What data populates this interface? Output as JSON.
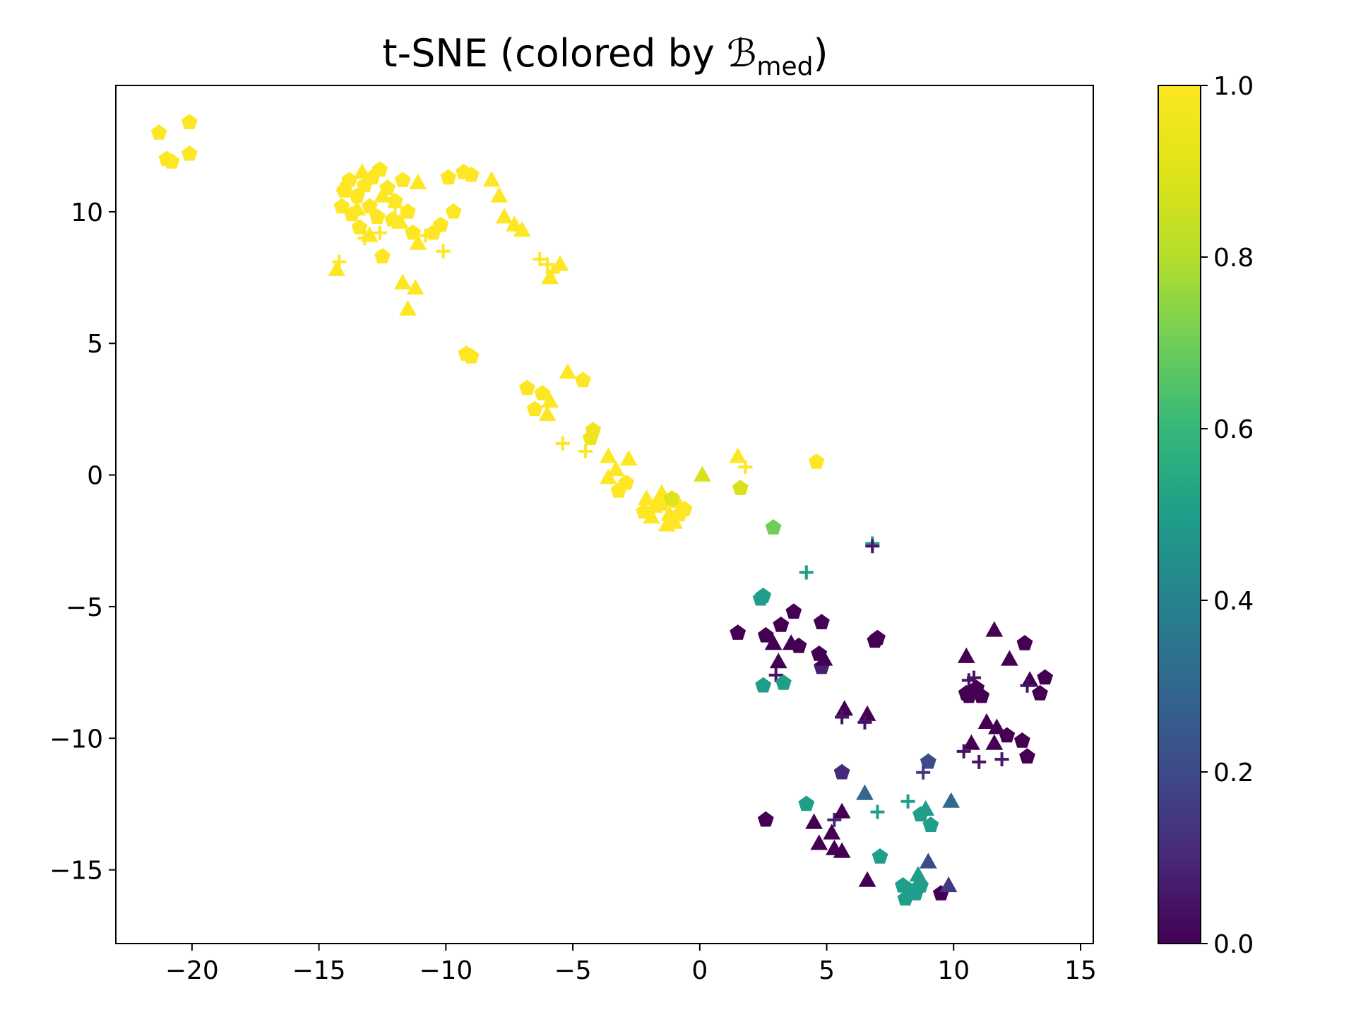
{
  "chart_data": {
    "type": "scatter",
    "title": "t-SNE (colored by ",
    "title_symbol": "ℬ",
    "title_subscript": "med",
    "title_end": ")",
    "xlabel": "",
    "ylabel": "",
    "xlim": [
      -23,
      15.5
    ],
    "ylim": [
      -17.8,
      14.8
    ],
    "xticks": [
      -20,
      -15,
      -10,
      -5,
      0,
      5,
      10,
      15
    ],
    "xtick_labels": [
      "−20",
      "−15",
      "−10",
      "−5",
      "0",
      "5",
      "10",
      "15"
    ],
    "yticks": [
      -15,
      -10,
      -5,
      0,
      5,
      10
    ],
    "ytick_labels": [
      "−15",
      "−10",
      "−5",
      "0",
      "5",
      "10"
    ],
    "grid": false,
    "colorbar": {
      "colormap": "viridis",
      "range": [
        0.0,
        1.0
      ],
      "ticks": [
        0.0,
        0.2,
        0.4,
        0.6,
        0.8,
        1.0
      ],
      "tick_labels": [
        "0.0",
        "0.2",
        "0.4",
        "0.6",
        "0.8",
        "1.0"
      ]
    },
    "marker_types": [
      "pentagon",
      "triangle",
      "plus"
    ],
    "points": [
      [
        -21.3,
        13.0,
        "p",
        1.0
      ],
      [
        -21.0,
        12.0,
        "p",
        1.0
      ],
      [
        -20.8,
        11.9,
        "p",
        1.0
      ],
      [
        -20.1,
        13.4,
        "p",
        1.0
      ],
      [
        -20.1,
        12.2,
        "p",
        1.0
      ],
      [
        -14.0,
        10.8,
        "p",
        1.0
      ],
      [
        -13.8,
        11.2,
        "p",
        1.0
      ],
      [
        -13.5,
        10.6,
        "p",
        1.0
      ],
      [
        -13.2,
        11.0,
        "p",
        1.0
      ],
      [
        -12.9,
        11.3,
        "p",
        1.0
      ],
      [
        -12.6,
        11.6,
        "p",
        1.0
      ],
      [
        -12.3,
        10.9,
        "p",
        1.0
      ],
      [
        -12.0,
        10.4,
        "p",
        1.0
      ],
      [
        -11.7,
        11.2,
        "p",
        1.0
      ],
      [
        -11.5,
        10.0,
        "p",
        1.0
      ],
      [
        -12.1,
        9.7,
        "p",
        1.0
      ],
      [
        -12.7,
        9.8,
        "p",
        1.0
      ],
      [
        -13.0,
        10.2,
        "p",
        1.0
      ],
      [
        -13.7,
        9.9,
        "p",
        1.0
      ],
      [
        -14.1,
        10.2,
        "p",
        1.0
      ],
      [
        -13.4,
        9.4,
        "p",
        1.0
      ],
      [
        -12.5,
        8.3,
        "p",
        1.0
      ],
      [
        -11.3,
        9.2,
        "p",
        1.0
      ],
      [
        -10.5,
        9.2,
        "p",
        1.0
      ],
      [
        -10.2,
        9.5,
        "p",
        1.0
      ],
      [
        -9.9,
        11.3,
        "p",
        1.0
      ],
      [
        -9.3,
        11.5,
        "p",
        1.0
      ],
      [
        -9.0,
        11.4,
        "p",
        1.0
      ],
      [
        -9.7,
        10.0,
        "p",
        1.0
      ],
      [
        -14.0,
        11.0,
        "t",
        1.0
      ],
      [
        -13.3,
        11.5,
        "t",
        1.0
      ],
      [
        -13.5,
        10.1,
        "t",
        1.0
      ],
      [
        -12.5,
        10.6,
        "t",
        1.0
      ],
      [
        -11.8,
        9.6,
        "t",
        1.0
      ],
      [
        -11.1,
        11.1,
        "t",
        1.0
      ],
      [
        -13.0,
        9.1,
        "t",
        1.0
      ],
      [
        -11.1,
        8.8,
        "t",
        1.0
      ],
      [
        -8.2,
        11.2,
        "t",
        1.0
      ],
      [
        -7.9,
        10.6,
        "t",
        1.0
      ],
      [
        -7.7,
        9.8,
        "t",
        1.0
      ],
      [
        -7.3,
        9.5,
        "t",
        1.0
      ],
      [
        -7.0,
        9.3,
        "t",
        1.0
      ],
      [
        -14.3,
        7.8,
        "t",
        1.0
      ],
      [
        -11.7,
        7.3,
        "t",
        1.0
      ],
      [
        -11.2,
        7.1,
        "t",
        1.0
      ],
      [
        -11.5,
        6.3,
        "t",
        1.0
      ],
      [
        -13.2,
        9.0,
        "+",
        1.0
      ],
      [
        -12.6,
        9.2,
        "+",
        1.0
      ],
      [
        -12.0,
        10.2,
        "+",
        1.0
      ],
      [
        -10.8,
        9.1,
        "+",
        1.0
      ],
      [
        -10.1,
        8.5,
        "+",
        1.0
      ],
      [
        -14.2,
        8.1,
        "+",
        1.0
      ],
      [
        -6.3,
        8.2,
        "+",
        1.0
      ],
      [
        -6.0,
        8.0,
        "+",
        1.0
      ],
      [
        -5.8,
        7.7,
        "+",
        1.0
      ],
      [
        -5.9,
        7.5,
        "t",
        1.0
      ],
      [
        -5.5,
        8.0,
        "t",
        1.0
      ],
      [
        -9.2,
        4.6,
        "p",
        1.0
      ],
      [
        -9.0,
        4.5,
        "p",
        1.0
      ],
      [
        -6.8,
        3.3,
        "p",
        1.0
      ],
      [
        -6.2,
        3.1,
        "p",
        1.0
      ],
      [
        -4.6,
        3.6,
        "p",
        1.0
      ],
      [
        -6.5,
        2.5,
        "p",
        1.0
      ],
      [
        -5.9,
        2.8,
        "t",
        1.0
      ],
      [
        -5.2,
        3.9,
        "t",
        1.0
      ],
      [
        -6.0,
        2.3,
        "t",
        1.0
      ],
      [
        -4.2,
        1.7,
        "p",
        0.95
      ],
      [
        -4.3,
        1.4,
        "p",
        0.95
      ],
      [
        -5.4,
        1.2,
        "+",
        1.0
      ],
      [
        -4.5,
        0.9,
        "+",
        1.0
      ],
      [
        -3.6,
        0.7,
        "t",
        1.0
      ],
      [
        -3.3,
        0.2,
        "t",
        1.0
      ],
      [
        -2.8,
        0.6,
        "t",
        1.0
      ],
      [
        -3.6,
        -0.1,
        "t",
        1.0
      ],
      [
        -2.9,
        -0.3,
        "p",
        1.0
      ],
      [
        -3.2,
        -0.6,
        "p",
        1.0
      ],
      [
        -2.1,
        -0.9,
        "t",
        1.0
      ],
      [
        -1.8,
        -1.2,
        "t",
        1.0
      ],
      [
        -1.5,
        -0.7,
        "t",
        1.0
      ],
      [
        -1.2,
        -1.5,
        "t",
        1.0
      ],
      [
        -0.9,
        -1.0,
        "t",
        1.0
      ],
      [
        -1.9,
        -1.6,
        "t",
        1.0
      ],
      [
        -1.3,
        -1.9,
        "t",
        1.0
      ],
      [
        -1.0,
        -1.8,
        "t",
        1.0
      ],
      [
        -0.6,
        -1.3,
        "p",
        1.0
      ],
      [
        -1.5,
        -1.1,
        "p",
        1.0
      ],
      [
        -1.1,
        -0.9,
        "p",
        0.9
      ],
      [
        -0.8,
        -1.5,
        "p",
        1.0
      ],
      [
        -2.2,
        -1.4,
        "p",
        1.0
      ],
      [
        0.1,
        0.0,
        "t",
        0.88
      ],
      [
        1.5,
        0.7,
        "t",
        1.0
      ],
      [
        1.8,
        0.3,
        "+",
        1.0
      ],
      [
        1.6,
        -0.5,
        "p",
        0.88
      ],
      [
        4.6,
        0.5,
        "p",
        1.0
      ],
      [
        2.9,
        -2.0,
        "p",
        0.7
      ],
      [
        6.8,
        -2.6,
        "+",
        0.5
      ],
      [
        6.8,
        -2.7,
        "+",
        0.05
      ],
      [
        4.2,
        -3.7,
        "+",
        0.5
      ],
      [
        2.5,
        -4.6,
        "p",
        0.5
      ],
      [
        2.4,
        -4.7,
        "p",
        0.5
      ],
      [
        1.5,
        -6.0,
        "p",
        0.0
      ],
      [
        2.6,
        -6.1,
        "p",
        0.0
      ],
      [
        3.2,
        -5.7,
        "p",
        0.0
      ],
      [
        3.7,
        -5.2,
        "p",
        0.0
      ],
      [
        4.8,
        -5.6,
        "p",
        0.0
      ],
      [
        3.9,
        -6.5,
        "p",
        0.0
      ],
      [
        4.7,
        -6.8,
        "p",
        0.0
      ],
      [
        4.8,
        -7.3,
        "p",
        0.08
      ],
      [
        7.0,
        -6.2,
        "p",
        0.0
      ],
      [
        6.9,
        -6.3,
        "p",
        0.0
      ],
      [
        2.9,
        -6.4,
        "t",
        0.0
      ],
      [
        3.1,
        -7.1,
        "t",
        0.0
      ],
      [
        3.6,
        -6.4,
        "t",
        0.0
      ],
      [
        4.9,
        -7.0,
        "t",
        0.0
      ],
      [
        3.0,
        -7.6,
        "+",
        0.05
      ],
      [
        2.5,
        -8.0,
        "p",
        0.5
      ],
      [
        3.3,
        -7.9,
        "p",
        0.5
      ],
      [
        5.7,
        -8.9,
        "t",
        0.0
      ],
      [
        6.6,
        -9.1,
        "t",
        0.0
      ],
      [
        5.6,
        -9.2,
        "+",
        0.05
      ],
      [
        6.5,
        -9.4,
        "+",
        0.05
      ],
      [
        10.5,
        -6.9,
        "t",
        0.0
      ],
      [
        11.6,
        -5.9,
        "t",
        0.0
      ],
      [
        12.2,
        -7.0,
        "t",
        0.0
      ],
      [
        12.8,
        -6.4,
        "p",
        0.0
      ],
      [
        13.0,
        -7.8,
        "t",
        0.0
      ],
      [
        13.6,
        -7.7,
        "p",
        0.0
      ],
      [
        13.4,
        -8.3,
        "p",
        0.0
      ],
      [
        12.9,
        -8.0,
        "+",
        0.05
      ],
      [
        10.6,
        -7.8,
        "+",
        0.05
      ],
      [
        10.8,
        -7.7,
        "+",
        0.05
      ],
      [
        10.5,
        -8.3,
        "p",
        0.0
      ],
      [
        10.9,
        -8.1,
        "p",
        0.0
      ],
      [
        11.1,
        -8.4,
        "p",
        0.0
      ],
      [
        10.6,
        -8.4,
        "p",
        0.0
      ],
      [
        11.3,
        -9.4,
        "t",
        0.0
      ],
      [
        11.7,
        -9.6,
        "t",
        0.0
      ],
      [
        12.1,
        -9.9,
        "p",
        0.0
      ],
      [
        12.7,
        -10.1,
        "p",
        0.0
      ],
      [
        12.9,
        -10.7,
        "p",
        0.0
      ],
      [
        11.6,
        -10.2,
        "t",
        0.0
      ],
      [
        10.7,
        -10.2,
        "t",
        0.0
      ],
      [
        10.4,
        -10.5,
        "+",
        0.05
      ],
      [
        11.0,
        -10.9,
        "+",
        0.05
      ],
      [
        11.9,
        -10.8,
        "+",
        0.05
      ],
      [
        9.0,
        -10.9,
        "p",
        0.2
      ],
      [
        8.8,
        -11.3,
        "+",
        0.15
      ],
      [
        5.6,
        -11.3,
        "p",
        0.1
      ],
      [
        6.5,
        -12.1,
        "t",
        0.3
      ],
      [
        4.2,
        -12.5,
        "p",
        0.5
      ],
      [
        8.2,
        -12.4,
        "+",
        0.5
      ],
      [
        7.0,
        -12.8,
        "+",
        0.5
      ],
      [
        8.9,
        -12.7,
        "t",
        0.5
      ],
      [
        9.9,
        -12.4,
        "t",
        0.3
      ],
      [
        8.7,
        -12.9,
        "p",
        0.5
      ],
      [
        9.1,
        -13.3,
        "p",
        0.5
      ],
      [
        2.6,
        -13.1,
        "p",
        0.0
      ],
      [
        4.5,
        -13.2,
        "t",
        0.0
      ],
      [
        5.3,
        -13.1,
        "+",
        0.1
      ],
      [
        5.6,
        -12.8,
        "t",
        0.0
      ],
      [
        5.2,
        -13.6,
        "t",
        0.0
      ],
      [
        4.7,
        -14.0,
        "t",
        0.0
      ],
      [
        5.3,
        -14.2,
        "t",
        0.0
      ],
      [
        5.6,
        -14.3,
        "t",
        0.0
      ],
      [
        7.1,
        -14.5,
        "p",
        0.5
      ],
      [
        9.0,
        -14.7,
        "t",
        0.2
      ],
      [
        8.6,
        -15.2,
        "t",
        0.5
      ],
      [
        8.0,
        -15.6,
        "p",
        0.5
      ],
      [
        8.3,
        -15.8,
        "p",
        0.5
      ],
      [
        8.1,
        -16.1,
        "p",
        0.5
      ],
      [
        8.5,
        -15.9,
        "p",
        0.5
      ],
      [
        8.7,
        -15.6,
        "p",
        0.5
      ],
      [
        6.6,
        -15.4,
        "t",
        0.0
      ],
      [
        9.5,
        -15.9,
        "p",
        0.0
      ],
      [
        9.8,
        -15.6,
        "t",
        0.15
      ]
    ]
  }
}
